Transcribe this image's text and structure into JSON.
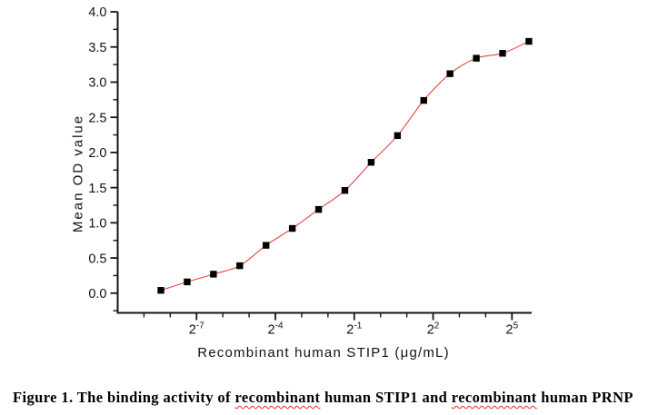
{
  "figure": {
    "caption_parts": [
      {
        "text": "Figure 1. The binding activity of ",
        "misspelled": false
      },
      {
        "text": "recombinant",
        "misspelled": true
      },
      {
        "text": " human STIP1 and ",
        "misspelled": false
      },
      {
        "text": "recombinant",
        "misspelled": true
      },
      {
        "text": " human PRNP",
        "misspelled": false
      }
    ]
  },
  "chart_data": {
    "type": "scatter",
    "title": "",
    "xlabel": "Recombinant human STIP1 (μg/mL)",
    "ylabel": "Mean OD value",
    "x_scale": "log2",
    "x_tick_base": "2",
    "x_axis_range_log2": [
      -10,
      5.75
    ],
    "x_minor_tick_exponents": [
      -9,
      -8,
      -7,
      -6,
      -5,
      -4,
      -3,
      -2,
      -1,
      0,
      1,
      2,
      3,
      4,
      5
    ],
    "x_major_tick_exponents": [
      -7,
      -4,
      -1,
      2,
      5
    ],
    "ylim": [
      -0.28,
      4.0
    ],
    "y_major_ticks": [
      0.0,
      0.5,
      1.0,
      1.5,
      2.0,
      2.5,
      3.0,
      3.5,
      4.0
    ],
    "y_minor_tick_step": 0.25,
    "grid": false,
    "legend": "none",
    "axis_color": "#141414",
    "series": [
      {
        "name": "Mean OD value",
        "marker": "filled-square",
        "marker_color": "#000000",
        "x_ug_per_ml": [
          0.003052,
          0.006104,
          0.012207,
          0.024414,
          0.048828,
          0.097656,
          0.195313,
          0.390625,
          0.78125,
          1.5625,
          3.125,
          6.25,
          12.5,
          25,
          50
        ],
        "y_od": [
          0.04,
          0.16,
          0.27,
          0.39,
          0.68,
          0.92,
          1.19,
          1.46,
          1.86,
          2.24,
          2.74,
          3.12,
          3.34,
          3.41,
          3.58
        ]
      }
    ],
    "fit_curve": {
      "type": "sigmoid-fit-through-points",
      "color": "#e4453f"
    }
  }
}
